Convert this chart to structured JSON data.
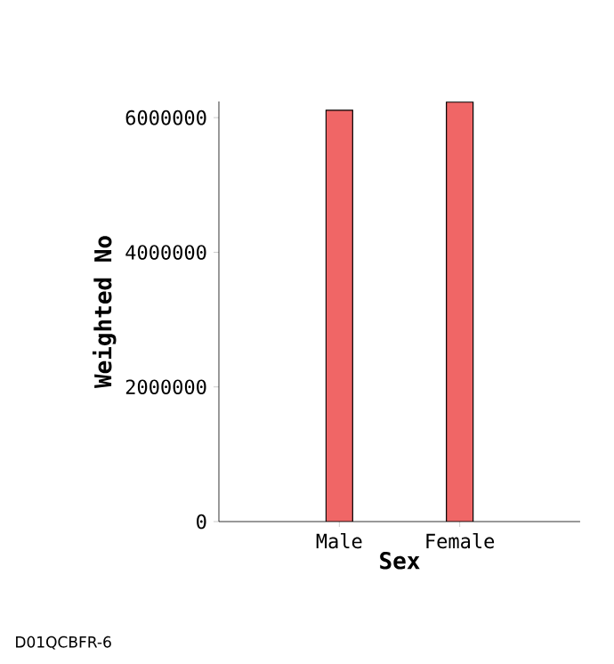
{
  "chart_data": {
    "type": "bar",
    "xlabel": "Sex",
    "ylabel": "Weighted No",
    "categories": [
      "Male",
      "Female"
    ],
    "values": [
      6110000,
      6230000
    ],
    "color": "#f06666",
    "ylim": [
      0,
      6240000
    ],
    "yticks": [
      0,
      2000000,
      4000000,
      6000000
    ],
    "annotations": [
      "D01QCBFR-6"
    ]
  }
}
